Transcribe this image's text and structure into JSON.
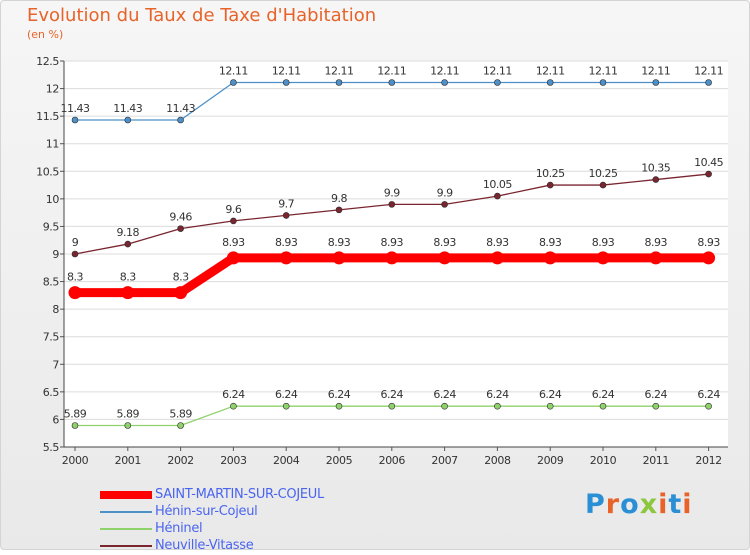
{
  "title": "Evolution du Taux de Taxe d'Habitation",
  "unit": "(en %)",
  "brand": {
    "text": "Proxiti",
    "letter_colors": [
      "#2b8fd6",
      "#e8632a",
      "#2b8fd6",
      "#8dc63f",
      "#e8632a",
      "#2b8fd6",
      "#e8632a"
    ]
  },
  "chart_data": {
    "type": "line",
    "categories": [
      "2000",
      "2001",
      "2002",
      "2003",
      "2004",
      "2005",
      "2006",
      "2007",
      "2008",
      "2009",
      "2010",
      "2011",
      "2012"
    ],
    "ylim": [
      5.5,
      12.5
    ],
    "yticks": [
      "5.5",
      "6",
      "6.5",
      "7",
      "7.5",
      "8",
      "8.5",
      "9",
      "9.5",
      "10",
      "10.5",
      "11",
      "11.5",
      "12",
      "12.5"
    ],
    "grid": "horizontal",
    "legend_position": "bottom-left",
    "series": [
      {
        "name": "SAINT-MARTIN-SUR-COJEUL",
        "color": "#ff0000",
        "values": [
          8.3,
          8.3,
          8.3,
          8.93,
          8.93,
          8.93,
          8.93,
          8.93,
          8.93,
          8.93,
          8.93,
          8.93,
          8.93
        ],
        "labels": [
          "8.3",
          "8.3",
          "8.3",
          "8.93",
          "8.93",
          "8.93",
          "8.93",
          "8.93",
          "8.93",
          "8.93",
          "8.93",
          "8.93",
          "8.93"
        ]
      },
      {
        "name": "Hénin-sur-Cojeul",
        "color": "#4d90c8",
        "values": [
          11.43,
          11.43,
          11.43,
          12.11,
          12.11,
          12.11,
          12.11,
          12.11,
          12.11,
          12.11,
          12.11,
          12.11,
          12.11
        ],
        "labels": [
          "11.43",
          "11.43",
          "11.43",
          "12.11",
          "12.11",
          "12.11",
          "12.11",
          "12.11",
          "12.11",
          "12.11",
          "12.11",
          "12.11",
          "12.11"
        ]
      },
      {
        "name": "Héninel",
        "color": "#8fd16b",
        "values": [
          5.89,
          5.89,
          5.89,
          6.24,
          6.24,
          6.24,
          6.24,
          6.24,
          6.24,
          6.24,
          6.24,
          6.24,
          6.24
        ],
        "labels": [
          "5.89",
          "5.89",
          "5.89",
          "6.24",
          "6.24",
          "6.24",
          "6.24",
          "6.24",
          "6.24",
          "6.24",
          "6.24",
          "6.24",
          "6.24"
        ]
      },
      {
        "name": "Neuville-Vitasse",
        "color": "#7a2630",
        "values": [
          9.0,
          9.18,
          9.46,
          9.6,
          9.7,
          9.8,
          9.9,
          9.9,
          10.05,
          10.25,
          10.25,
          10.35,
          10.45
        ],
        "labels": [
          "9",
          "9.18",
          "9.46",
          "9.6",
          "9.7",
          "9.8",
          "9.9",
          "9.9",
          "10.05",
          "10.25",
          "10.25",
          "10.35",
          "10.45"
        ]
      }
    ]
  }
}
